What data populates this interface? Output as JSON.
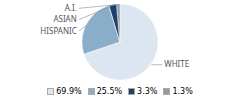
{
  "chart_data": {
    "type": "pie",
    "categories": [
      "WHITE",
      "HISPANIC",
      "ASIAN",
      "A.I."
    ],
    "values": [
      69.9,
      25.5,
      3.3,
      1.3
    ],
    "value_labels": [
      "69.9%",
      "25.5%",
      "3.3%",
      "1.3%"
    ],
    "colors": [
      "#dce6f0",
      "#8aaec8",
      "#1e3f6e",
      "#8c9eac"
    ],
    "legend": "bottom"
  }
}
